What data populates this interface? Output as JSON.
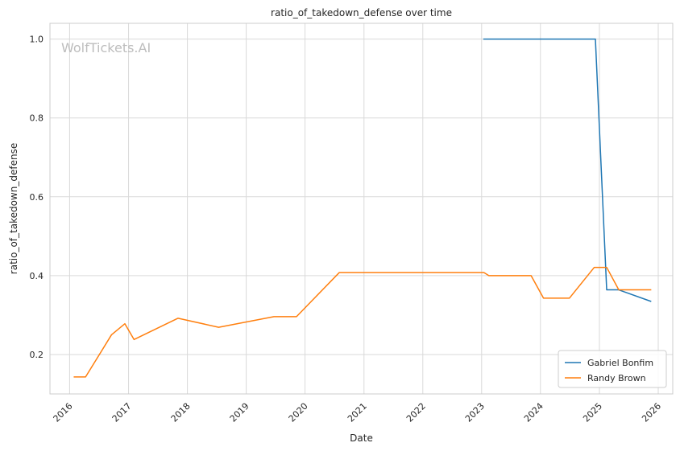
{
  "chart_data": {
    "type": "line",
    "title": "ratio_of_takedown_defense over time",
    "xlabel": "Date",
    "ylabel": "ratio_of_takedown_defense",
    "watermark": "WolfTickets.AI",
    "xlim": [
      "2015-09-01",
      "2026-04-01"
    ],
    "ylim": [
      0.1,
      1.04
    ],
    "x_ticks": [
      "2016",
      "2017",
      "2018",
      "2019",
      "2020",
      "2021",
      "2022",
      "2023",
      "2024",
      "2025",
      "2026"
    ],
    "y_ticks": [
      "0.2",
      "0.4",
      "0.6",
      "0.8",
      "1.0"
    ],
    "grid": true,
    "legend_position": "lower right",
    "series": [
      {
        "name": "Gabriel Bonfim",
        "color": "#1f77b4",
        "points": [
          [
            "2023-01-15",
            1.0
          ],
          [
            "2024-12-07",
            1.0
          ],
          [
            "2025-02-15",
            0.364
          ],
          [
            "2025-05-01",
            0.364
          ],
          [
            "2025-11-15",
            0.335
          ]
        ]
      },
      {
        "name": "Randy Brown",
        "color": "#ff7f0e",
        "points": [
          [
            "2016-01-30",
            0.143
          ],
          [
            "2016-04-09",
            0.143
          ],
          [
            "2016-09-17",
            0.25
          ],
          [
            "2016-12-09",
            0.278
          ],
          [
            "2017-02-04",
            0.238
          ],
          [
            "2017-11-04",
            0.292
          ],
          [
            "2018-07-14",
            0.269
          ],
          [
            "2019-06-22",
            0.296
          ],
          [
            "2019-11-09",
            0.296
          ],
          [
            "2020-08-01",
            0.408
          ],
          [
            "2023-01-15",
            0.408
          ],
          [
            "2023-02-15",
            0.4
          ],
          [
            "2023-11-04",
            0.4
          ],
          [
            "2024-01-20",
            0.343
          ],
          [
            "2024-06-29",
            0.343
          ],
          [
            "2024-11-30",
            0.421
          ],
          [
            "2025-02-15",
            0.421
          ],
          [
            "2025-05-01",
            0.364
          ],
          [
            "2025-11-15",
            0.364
          ]
        ]
      }
    ]
  }
}
